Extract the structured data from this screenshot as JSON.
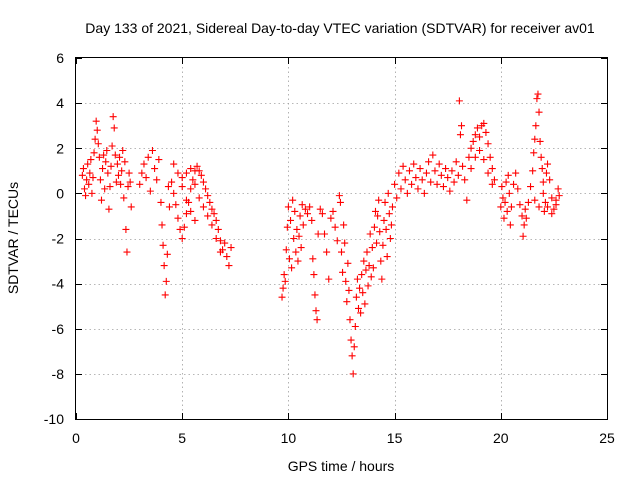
{
  "chart_data": {
    "type": "scatter",
    "title": "Day 133 of 2021, Sidereal Day-to-day VTEC variation (SDTVAR) for receiver av01",
    "xlabel": "GPS time / hours",
    "ylabel": "SDTVAR / TECUs",
    "xlim": [
      0,
      25
    ],
    "ylim": [
      -10,
      6
    ],
    "xticks": [
      0,
      5,
      10,
      15,
      20,
      25
    ],
    "yticks": [
      -10,
      -8,
      -6,
      -4,
      -2,
      0,
      2,
      4,
      6
    ],
    "xtick_labels": [
      "0",
      "5",
      "10",
      "15",
      "20",
      "25"
    ],
    "ytick_labels": [
      "-10",
      "-8",
      "-6",
      "-4",
      "-2",
      "0",
      "2",
      "4",
      "6"
    ],
    "grid": true,
    "legend": "none",
    "marker": "+",
    "color": "#ff0000",
    "series": [
      {
        "name": "SDTVAR",
        "points": [
          [
            0.3,
            0.8
          ],
          [
            0.35,
            1.1
          ],
          [
            0.4,
            0.2
          ],
          [
            0.45,
            -0.1
          ],
          [
            0.5,
            0.6
          ],
          [
            0.55,
            1.3
          ],
          [
            0.6,
            0.4
          ],
          [
            0.65,
            0.9
          ],
          [
            0.7,
            1.5
          ],
          [
            0.75,
            0.0
          ],
          [
            0.8,
            0.7
          ],
          [
            0.85,
            1.8
          ],
          [
            0.9,
            2.4
          ],
          [
            0.95,
            3.2
          ],
          [
            1.0,
            2.8
          ],
          [
            1.05,
            2.2
          ],
          [
            1.1,
            1.6
          ],
          [
            1.15,
            0.6
          ],
          [
            1.2,
            -0.3
          ],
          [
            1.25,
            1.1
          ],
          [
            1.3,
            1.7
          ],
          [
            1.35,
            0.2
          ],
          [
            1.4,
            1.4
          ],
          [
            1.45,
            1.9
          ],
          [
            1.5,
            0.9
          ],
          [
            1.55,
            -0.7
          ],
          [
            1.6,
            0.3
          ],
          [
            1.65,
            1.2
          ],
          [
            1.7,
            2.1
          ],
          [
            1.75,
            3.4
          ],
          [
            1.8,
            2.9
          ],
          [
            1.85,
            1.7
          ],
          [
            1.9,
            0.5
          ],
          [
            1.95,
            1.3
          ],
          [
            2.0,
            0.8
          ],
          [
            2.05,
            1.6
          ],
          [
            2.1,
            0.4
          ],
          [
            2.15,
            1.0
          ],
          [
            2.2,
            1.9
          ],
          [
            2.25,
            -0.2
          ],
          [
            2.3,
            1.4
          ],
          [
            2.35,
            -1.6
          ],
          [
            2.4,
            -2.6
          ],
          [
            2.45,
            0.3
          ],
          [
            2.5,
            0.9
          ],
          [
            2.55,
            0.5
          ],
          [
            2.6,
            -0.6
          ],
          [
            3.0,
            0.4
          ],
          [
            3.1,
            0.9
          ],
          [
            3.2,
            1.3
          ],
          [
            3.3,
            0.7
          ],
          [
            3.4,
            1.6
          ],
          [
            3.5,
            0.1
          ],
          [
            3.6,
            1.9
          ],
          [
            3.7,
            1.1
          ],
          [
            3.8,
            0.6
          ],
          [
            3.9,
            1.5
          ],
          [
            4.0,
            -0.4
          ],
          [
            4.05,
            -1.4
          ],
          [
            4.1,
            -2.3
          ],
          [
            4.15,
            -3.2
          ],
          [
            4.2,
            -4.5
          ],
          [
            4.25,
            -3.9
          ],
          [
            4.3,
            -2.7
          ],
          [
            4.35,
            0.3
          ],
          [
            4.4,
            -0.6
          ],
          [
            4.5,
            0.5
          ],
          [
            4.6,
            0.0
          ],
          [
            4.7,
            -0.5
          ],
          [
            4.8,
            -1.1
          ],
          [
            4.9,
            -1.6
          ],
          [
            5.0,
            -2.0
          ],
          [
            5.1,
            -1.5
          ],
          [
            5.2,
            -0.9
          ],
          [
            5.3,
            -0.4
          ],
          [
            5.4,
            0.2
          ],
          [
            5.5,
            0.6
          ],
          [
            5.6,
            1.0
          ],
          [
            5.7,
            1.2
          ],
          [
            5.8,
            1.0
          ],
          [
            5.9,
            0.8
          ],
          [
            6.0,
            0.5
          ],
          [
            6.1,
            0.2
          ],
          [
            6.2,
            -0.1
          ],
          [
            6.3,
            -0.4
          ],
          [
            6.4,
            -0.7
          ],
          [
            6.5,
            -0.9
          ],
          [
            6.6,
            -1.2
          ],
          [
            6.7,
            -1.6
          ],
          [
            6.8,
            -2.1
          ],
          [
            6.9,
            -2.5
          ],
          [
            7.0,
            -2.2
          ],
          [
            7.1,
            -2.8
          ],
          [
            7.2,
            -3.2
          ],
          [
            7.3,
            -2.4
          ],
          [
            5.0,
            0.7
          ],
          [
            5.2,
            0.9
          ],
          [
            5.4,
            1.1
          ],
          [
            5.6,
            0.4
          ],
          [
            5.8,
            -0.2
          ],
          [
            6.0,
            -0.6
          ],
          [
            6.2,
            -1.0
          ],
          [
            6.4,
            -1.4
          ],
          [
            6.6,
            -2.0
          ],
          [
            6.8,
            -2.6
          ],
          [
            4.6,
            1.3
          ],
          [
            4.8,
            0.9
          ],
          [
            5.0,
            0.3
          ],
          [
            5.2,
            -0.3
          ],
          [
            5.4,
            -0.8
          ],
          [
            5.6,
            -1.2
          ],
          [
            9.7,
            -4.6
          ],
          [
            9.75,
            -4.2
          ],
          [
            9.8,
            -3.6
          ],
          [
            9.85,
            -3.9
          ],
          [
            9.9,
            -2.5
          ],
          [
            9.95,
            -1.5
          ],
          [
            10.0,
            -0.6
          ],
          [
            10.05,
            -2.9
          ],
          [
            10.1,
            -1.2
          ],
          [
            10.15,
            -3.3
          ],
          [
            10.2,
            -0.3
          ],
          [
            10.25,
            -2.0
          ],
          [
            10.3,
            -0.8
          ],
          [
            10.35,
            -2.6
          ],
          [
            10.4,
            -1.6
          ],
          [
            10.45,
            -3.0
          ],
          [
            10.5,
            -1.9
          ],
          [
            10.55,
            -1.0
          ],
          [
            10.6,
            -2.4
          ],
          [
            10.65,
            -0.5
          ],
          [
            10.7,
            -1.4
          ],
          [
            10.8,
            -0.7
          ],
          [
            10.9,
            -0.9
          ],
          [
            11.0,
            -0.6
          ],
          [
            11.1,
            -1.2
          ],
          [
            11.15,
            -2.9
          ],
          [
            11.2,
            -3.6
          ],
          [
            11.25,
            -4.5
          ],
          [
            11.3,
            -5.2
          ],
          [
            11.35,
            -5.6
          ],
          [
            11.4,
            -1.8
          ],
          [
            11.5,
            -0.7
          ],
          [
            11.6,
            -0.9
          ],
          [
            11.7,
            -1.8
          ],
          [
            11.8,
            -2.6
          ],
          [
            11.9,
            -3.8
          ],
          [
            12.0,
            -1.1
          ],
          [
            12.1,
            -0.8
          ],
          [
            12.2,
            -1.5
          ],
          [
            12.3,
            -2.1
          ],
          [
            12.4,
            -0.1
          ],
          [
            12.45,
            -0.4
          ],
          [
            12.5,
            -2.6
          ],
          [
            12.55,
            -3.5
          ],
          [
            12.6,
            -1.4
          ],
          [
            12.65,
            -2.2
          ],
          [
            12.7,
            -3.9
          ],
          [
            12.75,
            -4.8
          ],
          [
            12.8,
            -3.1
          ],
          [
            12.85,
            -4.3
          ],
          [
            12.9,
            -5.6
          ],
          [
            12.95,
            -6.5
          ],
          [
            13.0,
            -7.2
          ],
          [
            13.05,
            -8.0
          ],
          [
            13.1,
            -6.8
          ],
          [
            13.15,
            -5.9
          ],
          [
            13.2,
            -4.6
          ],
          [
            13.25,
            -3.8
          ],
          [
            13.3,
            -5.1
          ],
          [
            13.35,
            -4.2
          ],
          [
            13.4,
            -5.3
          ],
          [
            13.45,
            -3.6
          ],
          [
            13.5,
            -4.4
          ],
          [
            13.55,
            -3.0
          ],
          [
            13.6,
            -4.9
          ],
          [
            13.65,
            -3.4
          ],
          [
            13.7,
            -2.6
          ],
          [
            13.75,
            -4.1
          ],
          [
            13.8,
            -3.2
          ],
          [
            13.85,
            -1.8
          ],
          [
            13.9,
            -3.7
          ],
          [
            13.95,
            -2.4
          ],
          [
            14.0,
            -3.3
          ],
          [
            14.05,
            -1.5
          ],
          [
            14.1,
            -0.8
          ],
          [
            14.15,
            -2.2
          ],
          [
            14.2,
            -1.0
          ],
          [
            14.25,
            -0.3
          ],
          [
            14.3,
            -1.7
          ],
          [
            14.35,
            -3.0
          ],
          [
            14.4,
            -3.8
          ],
          [
            14.45,
            -2.3
          ],
          [
            14.5,
            -1.2
          ],
          [
            14.55,
            -0.4
          ],
          [
            14.6,
            -1.6
          ],
          [
            14.65,
            -2.8
          ],
          [
            14.7,
            0.0
          ],
          [
            14.75,
            -0.9
          ],
          [
            14.8,
            -2.0
          ],
          [
            14.85,
            -1.4
          ],
          [
            14.9,
            -0.6
          ],
          [
            15.0,
            0.4
          ],
          [
            15.1,
            -0.2
          ],
          [
            15.2,
            0.9
          ],
          [
            15.3,
            0.2
          ],
          [
            15.4,
            1.2
          ],
          [
            15.5,
            0.6
          ],
          [
            15.6,
            0.0
          ],
          [
            15.7,
            1.0
          ],
          [
            15.8,
            0.4
          ],
          [
            15.9,
            1.3
          ],
          [
            16.0,
            0.7
          ],
          [
            16.1,
            0.2
          ],
          [
            16.2,
            1.1
          ],
          [
            16.3,
            0.6
          ],
          [
            16.4,
            0.0
          ],
          [
            16.5,
            0.9
          ],
          [
            16.6,
            1.4
          ],
          [
            16.7,
            0.5
          ],
          [
            16.8,
            1.7
          ],
          [
            16.9,
            1.0
          ],
          [
            17.0,
            0.4
          ],
          [
            17.1,
            1.3
          ],
          [
            17.2,
            0.8
          ],
          [
            17.3,
            0.3
          ],
          [
            17.4,
            1.1
          ],
          [
            17.5,
            0.7
          ],
          [
            17.6,
            0.1
          ],
          [
            17.7,
            1.0
          ],
          [
            17.8,
            0.5
          ],
          [
            17.9,
            1.4
          ],
          [
            18.0,
            0.8
          ],
          [
            18.05,
            4.1
          ],
          [
            18.1,
            2.6
          ],
          [
            18.15,
            3.0
          ],
          [
            18.2,
            1.2
          ],
          [
            18.3,
            0.6
          ],
          [
            18.4,
            -0.3
          ],
          [
            18.5,
            1.6
          ],
          [
            18.6,
            2.0
          ],
          [
            18.7,
            2.3
          ],
          [
            18.8,
            2.6
          ],
          [
            18.9,
            2.9
          ],
          [
            19.0,
            2.5
          ],
          [
            19.1,
            3.0
          ],
          [
            19.2,
            3.1
          ],
          [
            19.3,
            2.7
          ],
          [
            19.4,
            2.2
          ],
          [
            19.5,
            1.6
          ],
          [
            19.6,
            1.1
          ],
          [
            19.7,
            0.6
          ],
          [
            18.6,
            1.1
          ],
          [
            18.8,
            1.6
          ],
          [
            19.0,
            1.9
          ],
          [
            19.2,
            1.5
          ],
          [
            19.4,
            0.9
          ],
          [
            19.6,
            0.4
          ],
          [
            20.0,
            -0.6
          ],
          [
            20.05,
            0.3
          ],
          [
            20.1,
            -0.2
          ],
          [
            20.15,
            -1.1
          ],
          [
            20.2,
            -0.4
          ],
          [
            20.25,
            0.5
          ],
          [
            20.3,
            -0.8
          ],
          [
            20.35,
            0.8
          ],
          [
            20.4,
            0.0
          ],
          [
            20.45,
            -1.4
          ],
          [
            20.5,
            -0.6
          ],
          [
            20.6,
            0.4
          ],
          [
            20.7,
            0.9
          ],
          [
            20.8,
            0.2
          ],
          [
            20.9,
            -0.5
          ],
          [
            21.0,
            -1.0
          ],
          [
            21.05,
            -1.9
          ],
          [
            21.1,
            -1.4
          ],
          [
            21.15,
            -0.7
          ],
          [
            21.2,
            -1.1
          ],
          [
            21.3,
            -0.4
          ],
          [
            21.4,
            0.3
          ],
          [
            21.5,
            1.0
          ],
          [
            21.55,
            1.8
          ],
          [
            21.6,
            2.4
          ],
          [
            21.65,
            3.0
          ],
          [
            21.7,
            4.2
          ],
          [
            21.75,
            4.4
          ],
          [
            21.8,
            3.6
          ],
          [
            21.85,
            2.3
          ],
          [
            21.9,
            1.6
          ],
          [
            21.95,
            1.1
          ],
          [
            22.0,
            0.5
          ],
          [
            22.05,
            -0.8
          ],
          [
            22.1,
            -0.4
          ],
          [
            22.15,
            0.9
          ],
          [
            22.2,
            1.3
          ],
          [
            22.3,
            0.6
          ],
          [
            22.4,
            -0.2
          ],
          [
            22.5,
            -0.7
          ],
          [
            22.6,
            -0.3
          ],
          [
            22.7,
            0.2
          ],
          [
            22.75,
            -0.1
          ],
          [
            21.6,
            -0.3
          ],
          [
            21.8,
            -0.6
          ],
          [
            22.0,
            0.0
          ],
          [
            22.2,
            -0.6
          ],
          [
            22.4,
            -0.9
          ],
          [
            22.6,
            -0.5
          ]
        ]
      }
    ]
  }
}
